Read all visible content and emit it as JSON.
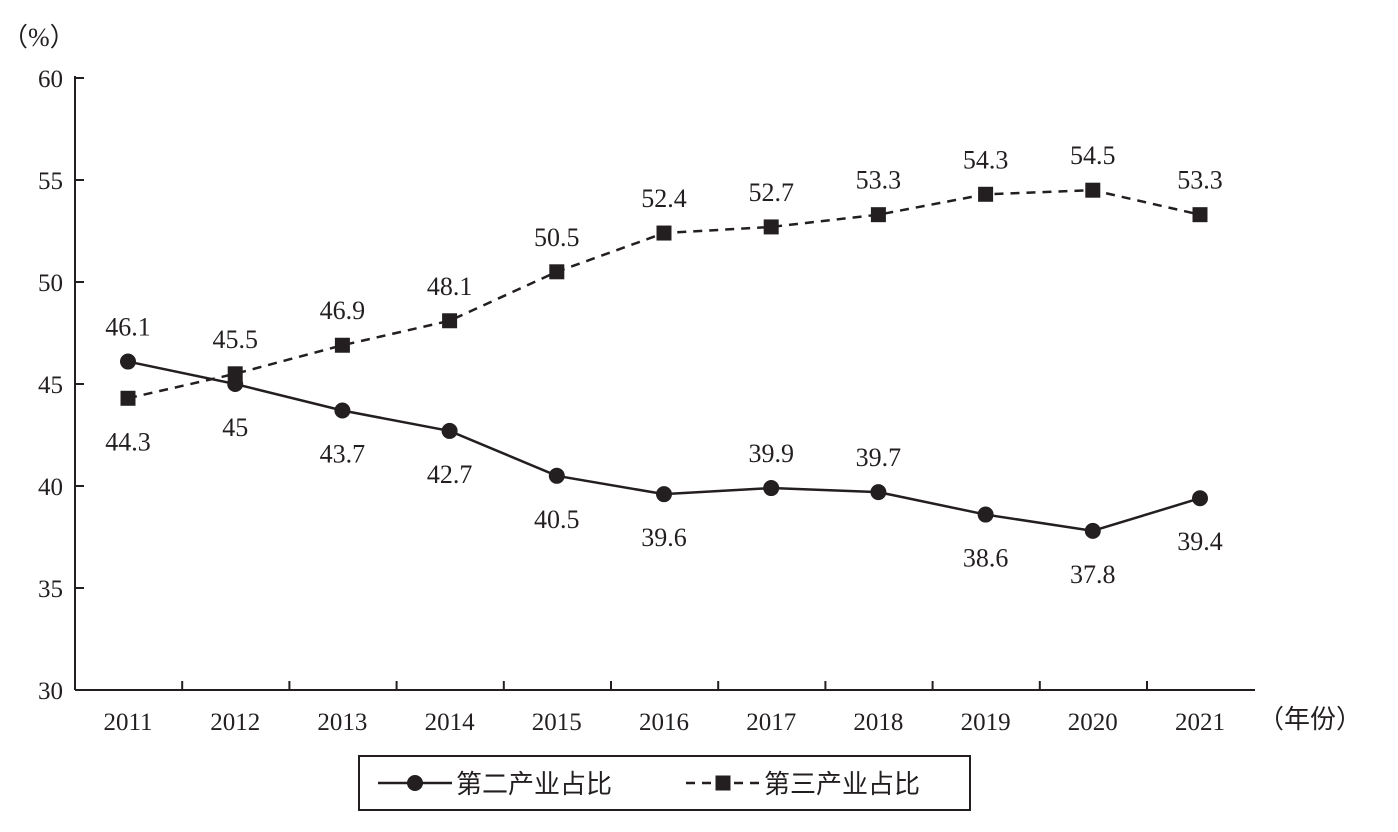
{
  "chart_data": {
    "type": "line",
    "y_unit": "（%）",
    "x_unit": "（年份）",
    "categories": [
      "2011",
      "2012",
      "2013",
      "2014",
      "2015",
      "2016",
      "2017",
      "2018",
      "2019",
      "2020",
      "2021"
    ],
    "ylim": [
      30,
      60
    ],
    "yticks": [
      30,
      35,
      40,
      45,
      50,
      55,
      60
    ],
    "grid": false,
    "legend_position": "bottom-center",
    "series": [
      {
        "name": "第二产业占比",
        "values": [
          46.1,
          45,
          43.7,
          42.7,
          40.5,
          39.6,
          39.9,
          39.7,
          38.6,
          37.8,
          39.4
        ],
        "labels": [
          "46.1",
          "45",
          "43.7",
          "42.7",
          "40.5",
          "39.6",
          "39.9",
          "39.7",
          "38.6",
          "37.8",
          "39.4"
        ],
        "marker": "circle",
        "line_style": "solid",
        "label_side": [
          "above",
          "below",
          "below",
          "below",
          "below",
          "below",
          "above",
          "above",
          "below",
          "below",
          "below"
        ]
      },
      {
        "name": "第三产业占比",
        "values": [
          44.3,
          45.5,
          46.9,
          48.1,
          50.5,
          52.4,
          52.7,
          53.3,
          54.3,
          54.5,
          53.3
        ],
        "labels": [
          "44.3",
          "45.5",
          "46.9",
          "48.1",
          "50.5",
          "52.4",
          "52.7",
          "53.3",
          "54.3",
          "54.5",
          "53.3"
        ],
        "marker": "square",
        "line_style": "dashed",
        "label_side": [
          "below",
          "above",
          "above",
          "above",
          "above",
          "above",
          "above",
          "above",
          "above",
          "above",
          "above"
        ]
      }
    ],
    "colors": {
      "ink": "#231f20",
      "background": "#ffffff"
    }
  }
}
